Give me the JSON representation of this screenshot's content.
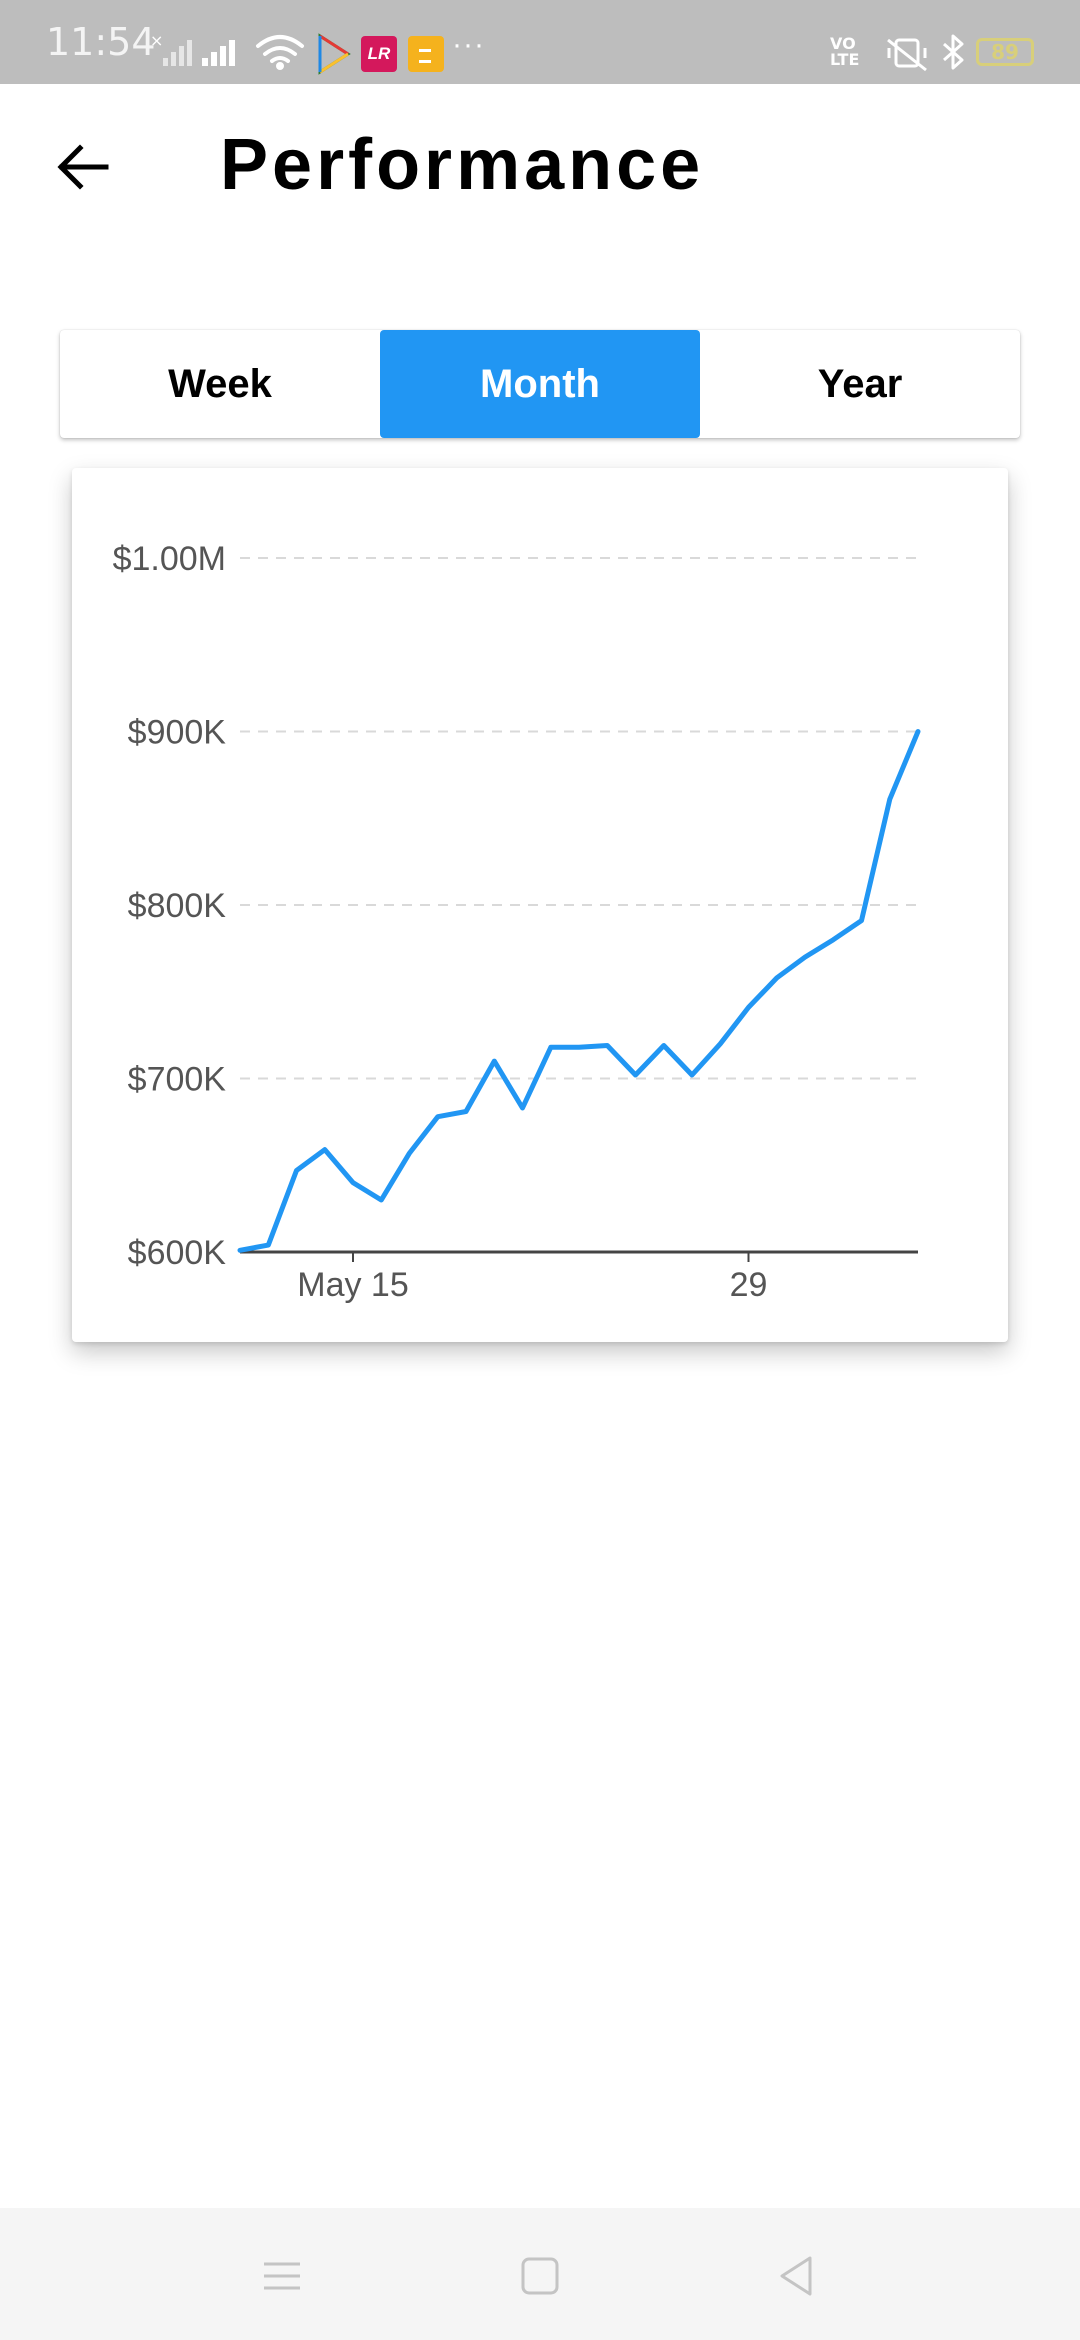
{
  "status_bar": {
    "time": "11:54",
    "battery": "89",
    "lr_badge": "LR",
    "more": "···",
    "volte_line1": "VO",
    "volte_line2": "LTE",
    "icons": [
      "signal-x-icon",
      "signal-icon",
      "wifi-icon",
      "play-store-icon",
      "lr-app-icon",
      "notes-app-icon",
      "more-dots-icon",
      "volte-icon",
      "mute-vibrate-icon",
      "bluetooth-icon",
      "battery-icon"
    ]
  },
  "header": {
    "title": "Performance",
    "back_icon": "arrow-left-icon"
  },
  "tabs": [
    {
      "label": "Week",
      "active": false
    },
    {
      "label": "Month",
      "active": true
    },
    {
      "label": "Year",
      "active": false
    }
  ],
  "colors": {
    "accent": "#2196f3",
    "status_bar": "#bdbdbd",
    "grid": "#d9d9d9"
  },
  "chart_data": {
    "type": "line",
    "title": "",
    "xlabel": "",
    "ylabel": "",
    "y_tick_labels": [
      "$600K",
      "$700K",
      "$800K",
      "$900K",
      "$1.00M"
    ],
    "y_ticks": [
      600000,
      700000,
      800000,
      900000,
      1000000
    ],
    "ylim": [
      600000,
      1000000
    ],
    "x_tick_labels": [
      "May 15",
      "29"
    ],
    "x_ticks": [
      "2020-05-15",
      "2020-05-29"
    ],
    "xlim": [
      "2020-05-11",
      "2020-06-04"
    ],
    "grid": "horizontal dashed",
    "x": [
      "2020-05-11",
      "2020-05-12",
      "2020-05-13",
      "2020-05-14",
      "2020-05-15",
      "2020-05-16",
      "2020-05-17",
      "2020-05-18",
      "2020-05-19",
      "2020-05-20",
      "2020-05-21",
      "2020-05-22",
      "2020-05-23",
      "2020-05-24",
      "2020-05-25",
      "2020-05-26",
      "2020-05-27",
      "2020-05-28",
      "2020-05-29",
      "2020-05-30",
      "2020-05-31",
      "2020-06-01",
      "2020-06-02",
      "2020-06-03",
      "2020-06-04"
    ],
    "values": [
      601000,
      604000,
      647000,
      659000,
      640000,
      630000,
      657000,
      678000,
      681000,
      710000,
      683000,
      718000,
      718000,
      719000,
      702000,
      719000,
      702000,
      720000,
      741000,
      758000,
      770000,
      780000,
      791000,
      861000,
      900000
    ]
  },
  "nav_bar": {
    "icons": [
      "menu-icon",
      "home-square-icon",
      "back-triangle-icon"
    ]
  }
}
